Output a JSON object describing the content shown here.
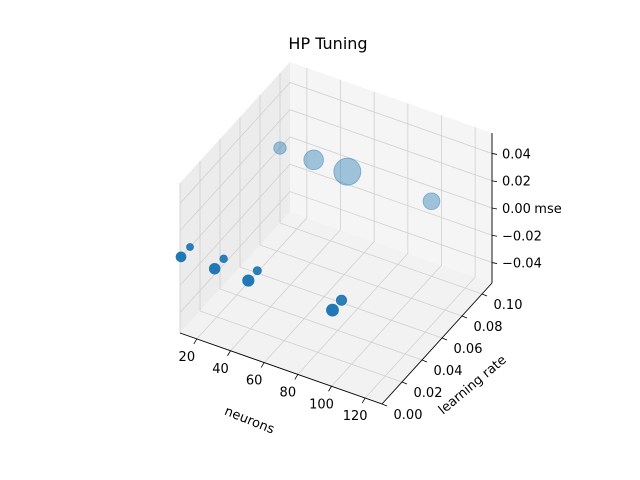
{
  "chart_data": {
    "type": "scatter",
    "title": "HP Tuning",
    "xlabel": "neurons",
    "ylabel": "learning rate",
    "zlabel": "mse",
    "xlim": [
      10,
      130
    ],
    "ylim": [
      0,
      0.11
    ],
    "zlim": [
      -0.055,
      0.055
    ],
    "xticks": [
      "20",
      "40",
      "60",
      "80",
      "100",
      "120"
    ],
    "yticks": [
      "0.00",
      "0.02",
      "0.04",
      "0.06",
      "0.08",
      "0.10"
    ],
    "zticks": [
      "−0.04",
      "−0.02",
      "0.00",
      "0.02",
      "0.04"
    ],
    "grid": true,
    "marker_color": "#1f77b4",
    "points": [
      {
        "neurons": 10,
        "learning_rate": 0.001,
        "mse": 0,
        "size": 40
      },
      {
        "neurons": 10,
        "learning_rate": 0.01,
        "mse": 0,
        "size": 16
      },
      {
        "neurons": 30,
        "learning_rate": 0.001,
        "mse": 0,
        "size": 48
      },
      {
        "neurons": 30,
        "learning_rate": 0.01,
        "mse": 0,
        "size": 20
      },
      {
        "neurons": 50,
        "learning_rate": 0.001,
        "mse": 0,
        "size": 56
      },
      {
        "neurons": 50,
        "learning_rate": 0.01,
        "mse": 0,
        "size": 24
      },
      {
        "neurons": 100,
        "learning_rate": 0.001,
        "mse": 0,
        "size": 64
      },
      {
        "neurons": 100,
        "learning_rate": 0.01,
        "mse": 0,
        "size": 44
      },
      {
        "neurons": 10,
        "learning_rate": 0.1,
        "mse": 0,
        "size": 70
      },
      {
        "neurons": 30,
        "learning_rate": 0.1,
        "mse": 0,
        "size": 200
      },
      {
        "neurons": 50,
        "learning_rate": 0.1,
        "mse": 0,
        "size": 400
      },
      {
        "neurons": 100,
        "learning_rate": 0.1,
        "mse": 0,
        "size": 140
      }
    ]
  }
}
